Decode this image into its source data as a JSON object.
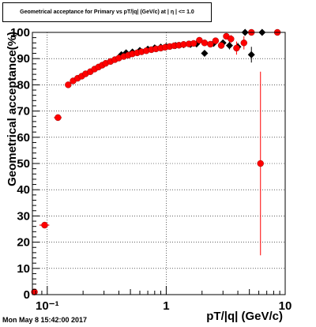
{
  "chart_data": {
    "type": "scatter",
    "title": "Geometrical acceptance for Primary vs pT/|q| (GeV/c) at | η | <= 1.0",
    "xlabel": "pT/|q| (GeV/c)",
    "ylabel": "Geometrical acceptance(%)",
    "x_scale": "log",
    "xlim": [
      0.075,
      10
    ],
    "ylim": [
      0,
      100
    ],
    "x_ticks": [
      {
        "value": 0.1,
        "label": "10⁻¹"
      },
      {
        "value": 1,
        "label": "1"
      },
      {
        "value": 10,
        "label": "10"
      }
    ],
    "y_ticks": [
      0,
      10,
      20,
      30,
      40,
      50,
      60,
      70,
      80,
      90,
      100
    ],
    "grid": true,
    "series": [
      {
        "color": "#000000",
        "marker": "diamond",
        "points": [
          {
            "x": 0.42,
            "y": 91.5
          },
          {
            "x": 0.46,
            "y": 92.2
          },
          {
            "x": 0.52,
            "y": 92.5
          },
          {
            "x": 0.6,
            "y": 93.1
          },
          {
            "x": 0.7,
            "y": 93.6
          },
          {
            "x": 0.8,
            "y": 94.1
          },
          {
            "x": 0.9,
            "y": 94.4
          },
          {
            "x": 1.0,
            "y": 94.6
          },
          {
            "x": 1.2,
            "y": 95.0
          },
          {
            "x": 1.4,
            "y": 95.3
          },
          {
            "x": 1.6,
            "y": 95.4
          },
          {
            "x": 1.8,
            "y": 95.6
          },
          {
            "x": 2.1,
            "y": 92.0,
            "err": 1.2
          },
          {
            "x": 2.5,
            "y": 95.8
          },
          {
            "x": 3.0,
            "y": 96.0
          },
          {
            "x": 3.4,
            "y": 95.0,
            "err": 1.5
          },
          {
            "x": 4.0,
            "y": 94.5,
            "err": 1.5
          },
          {
            "x": 4.6,
            "y": 100
          },
          {
            "x": 5.2,
            "y": 91.5,
            "err": 3
          },
          {
            "x": 6.4,
            "y": 100
          }
        ]
      },
      {
        "color": "#ff0000",
        "marker": "circle",
        "points": [
          {
            "x": 0.078,
            "y": 1.0
          },
          {
            "x": 0.095,
            "y": 26.5,
            "xerr": 0.009
          },
          {
            "x": 0.123,
            "y": 67.5,
            "xerr": 0.009
          },
          {
            "x": 0.15,
            "y": 80.0
          },
          {
            "x": 0.165,
            "y": 81.5
          },
          {
            "x": 0.18,
            "y": 82.5
          },
          {
            "x": 0.195,
            "y": 83.3
          },
          {
            "x": 0.21,
            "y": 84.2
          },
          {
            "x": 0.23,
            "y": 85.0
          },
          {
            "x": 0.25,
            "y": 86.0
          },
          {
            "x": 0.27,
            "y": 86.8
          },
          {
            "x": 0.29,
            "y": 87.5
          },
          {
            "x": 0.31,
            "y": 88.2
          },
          {
            "x": 0.34,
            "y": 88.9
          },
          {
            "x": 0.37,
            "y": 89.6
          },
          {
            "x": 0.4,
            "y": 90.2
          },
          {
            "x": 0.44,
            "y": 90.8
          },
          {
            "x": 0.48,
            "y": 91.3
          },
          {
            "x": 0.52,
            "y": 91.8
          },
          {
            "x": 0.57,
            "y": 92.2
          },
          {
            "x": 0.62,
            "y": 92.6
          },
          {
            "x": 0.68,
            "y": 93.0
          },
          {
            "x": 0.75,
            "y": 93.4
          },
          {
            "x": 0.82,
            "y": 93.7
          },
          {
            "x": 0.9,
            "y": 94.0
          },
          {
            "x": 0.98,
            "y": 94.3
          },
          {
            "x": 1.07,
            "y": 94.6
          },
          {
            "x": 1.17,
            "y": 94.9
          },
          {
            "x": 1.28,
            "y": 95.1
          },
          {
            "x": 1.4,
            "y": 95.4
          },
          {
            "x": 1.55,
            "y": 95.6
          },
          {
            "x": 1.7,
            "y": 95.8
          },
          {
            "x": 1.9,
            "y": 97.0
          },
          {
            "x": 2.1,
            "y": 96.0
          },
          {
            "x": 2.35,
            "y": 95.5
          },
          {
            "x": 2.6,
            "y": 96.8
          },
          {
            "x": 2.9,
            "y": 95.0
          },
          {
            "x": 3.2,
            "y": 98.5
          },
          {
            "x": 3.5,
            "y": 97.5,
            "err": 1.5
          },
          {
            "x": 3.9,
            "y": 94.0,
            "err": 2.5
          },
          {
            "x": 4.5,
            "y": 96.0,
            "err": 2.5
          },
          {
            "x": 5.2,
            "y": 100
          },
          {
            "x": 6.2,
            "y": 50.0,
            "err": 35
          },
          {
            "x": 8.6,
            "y": 100
          }
        ]
      }
    ]
  },
  "footer": {
    "timestamp": "Mon May  8 15:42:00 2017"
  }
}
